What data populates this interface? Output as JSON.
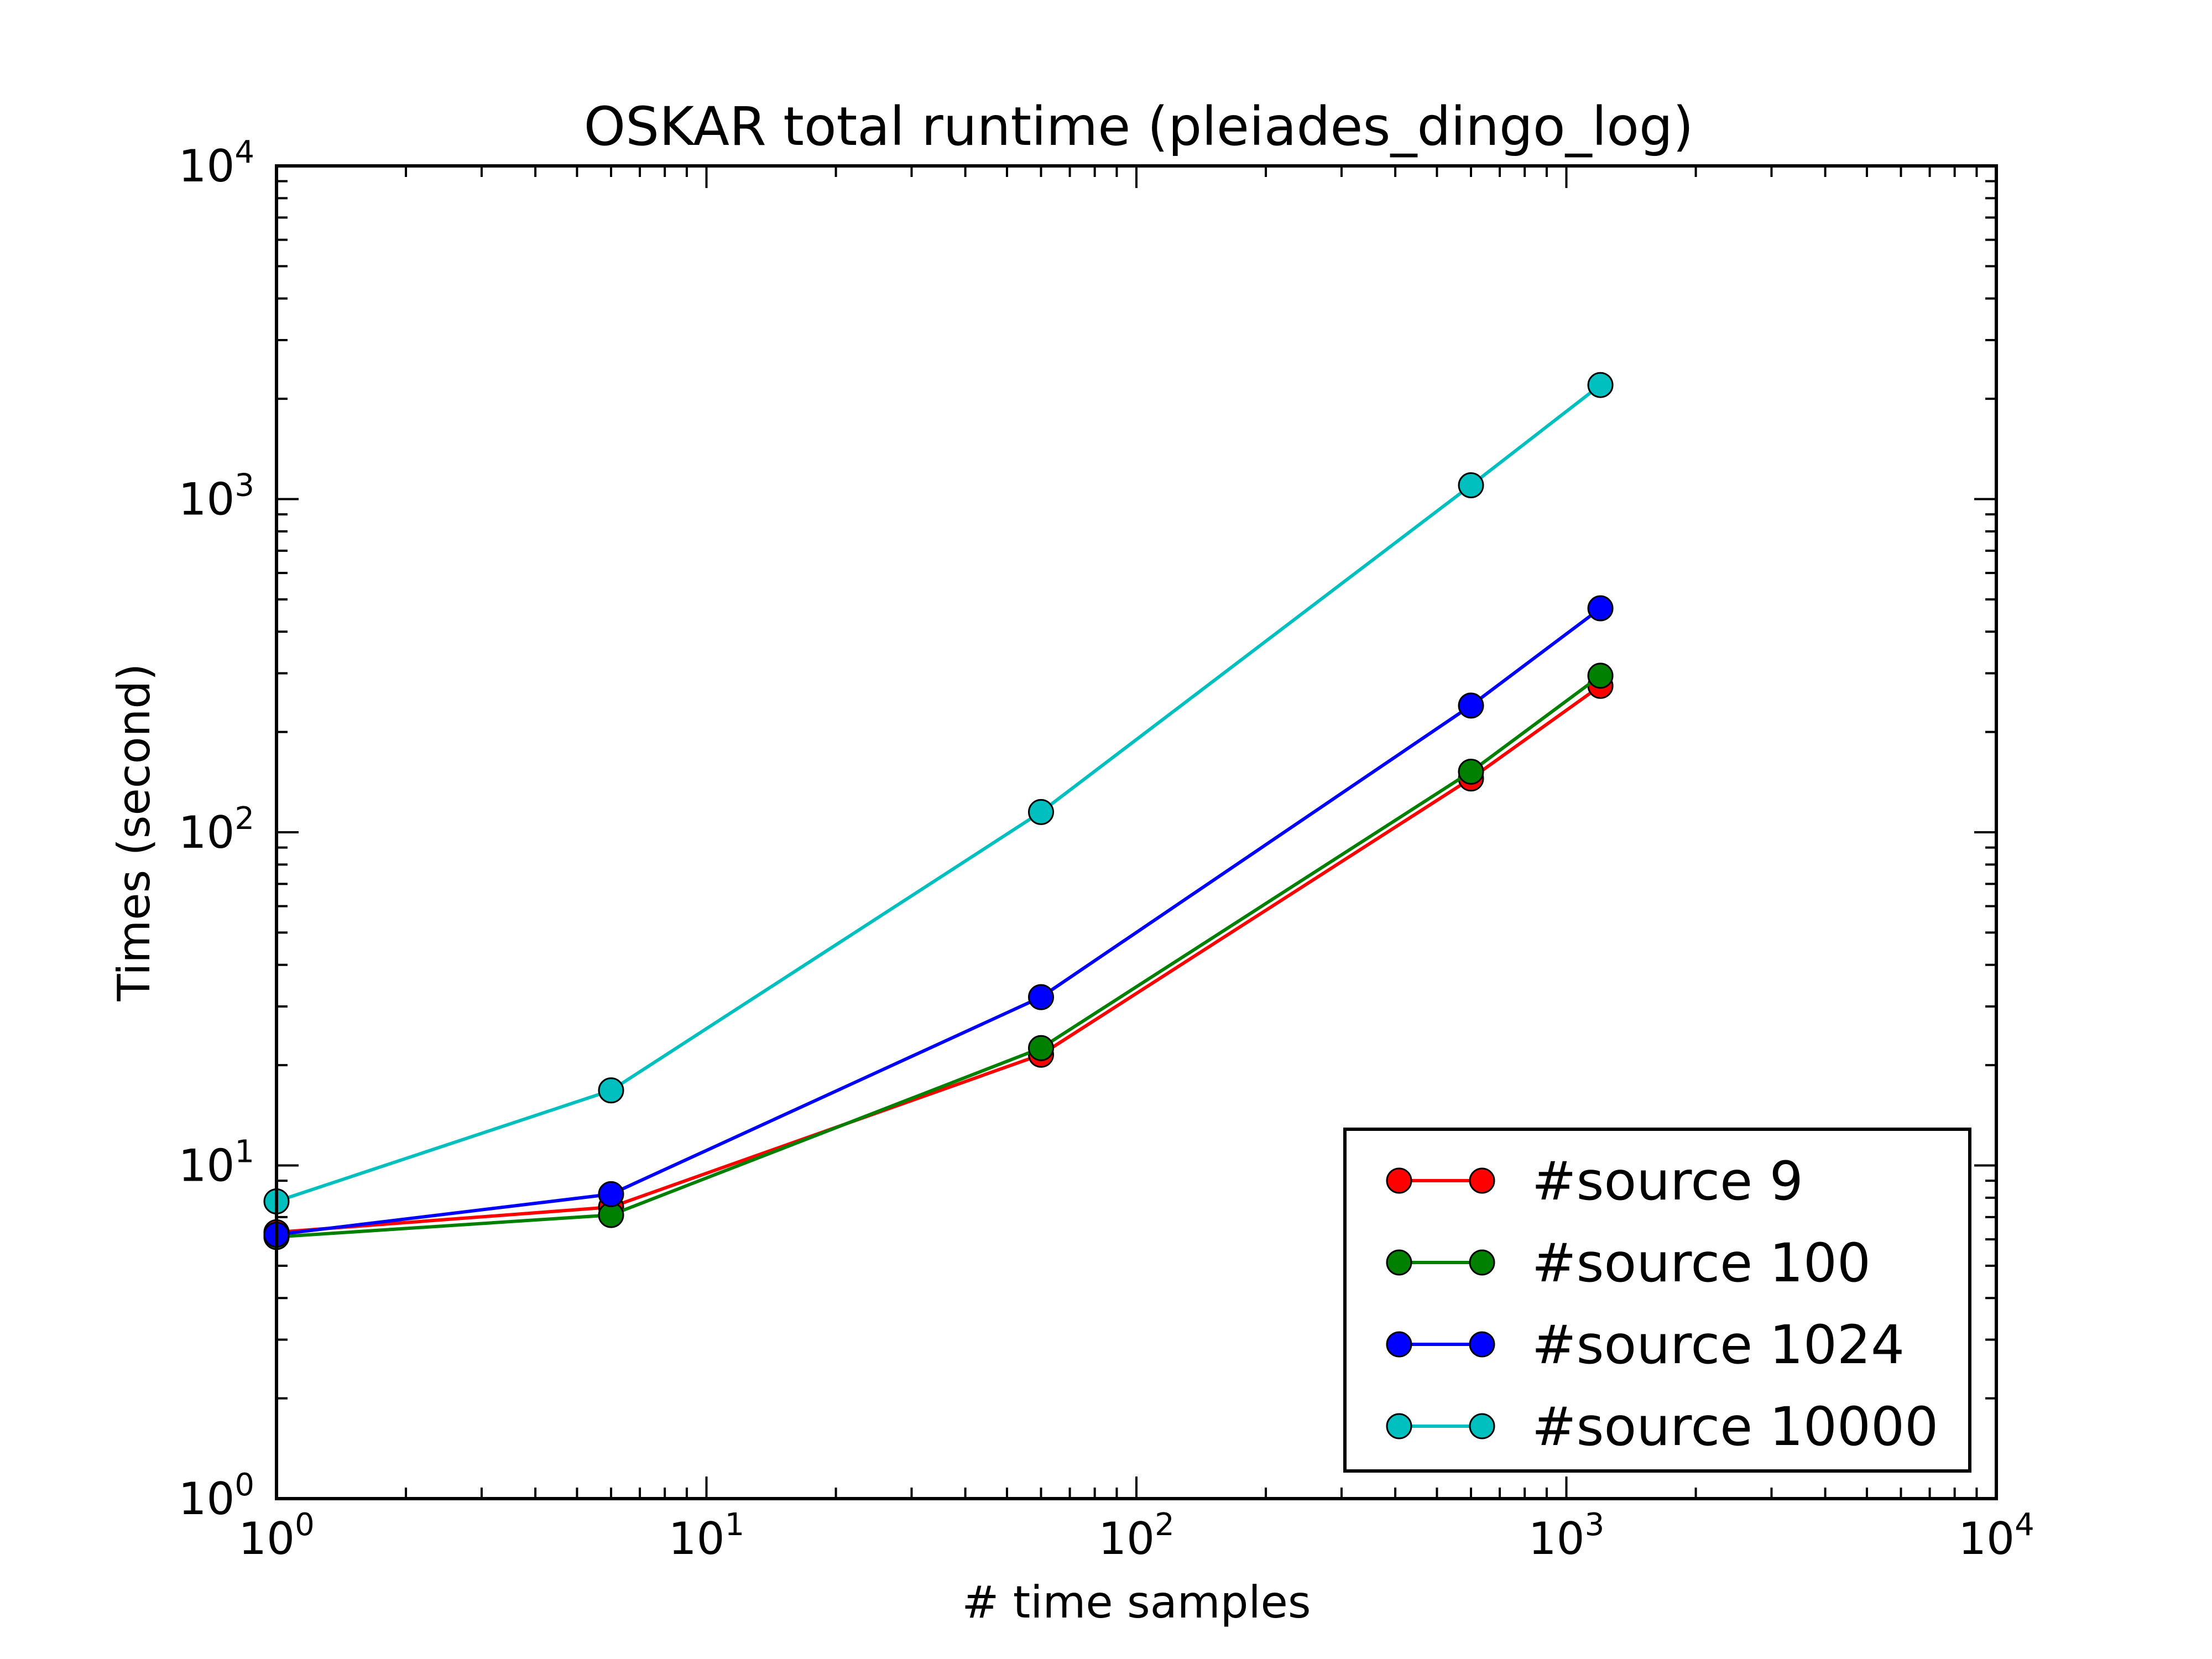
{
  "chart_data": {
    "type": "line",
    "title": "OSKAR total runtime (pleiades_dingo_log)",
    "xlabel": "# time samples",
    "ylabel": "Times (second)",
    "xscale": "log",
    "yscale": "log",
    "xlim": [
      1,
      10000
    ],
    "ylim": [
      1,
      10000
    ],
    "x_ticks": [
      {
        "base": "10",
        "exp": "0"
      },
      {
        "base": "10",
        "exp": "1"
      },
      {
        "base": "10",
        "exp": "2"
      },
      {
        "base": "10",
        "exp": "3"
      },
      {
        "base": "10",
        "exp": "4"
      }
    ],
    "y_ticks": [
      {
        "base": "10",
        "exp": "0"
      },
      {
        "base": "10",
        "exp": "1"
      },
      {
        "base": "10",
        "exp": "2"
      },
      {
        "base": "10",
        "exp": "3"
      },
      {
        "base": "10",
        "exp": "4"
      }
    ],
    "x": [
      1,
      6,
      60,
      600,
      1200
    ],
    "legend_position": "lower right",
    "series": [
      {
        "name": "#source 9",
        "color": "#ff0000",
        "values": [
          6.3,
          7.5,
          21.5,
          145,
          275
        ]
      },
      {
        "name": "#source 100",
        "color": "#008000",
        "values": [
          6.1,
          7.1,
          22.5,
          152,
          295
        ]
      },
      {
        "name": "#source 1024",
        "color": "#0000ff",
        "values": [
          6.2,
          8.2,
          32,
          240,
          470
        ]
      },
      {
        "name": "#source 10000",
        "color": "#00bfbf",
        "values": [
          7.8,
          16.8,
          115,
          1100,
          2200
        ]
      }
    ]
  }
}
